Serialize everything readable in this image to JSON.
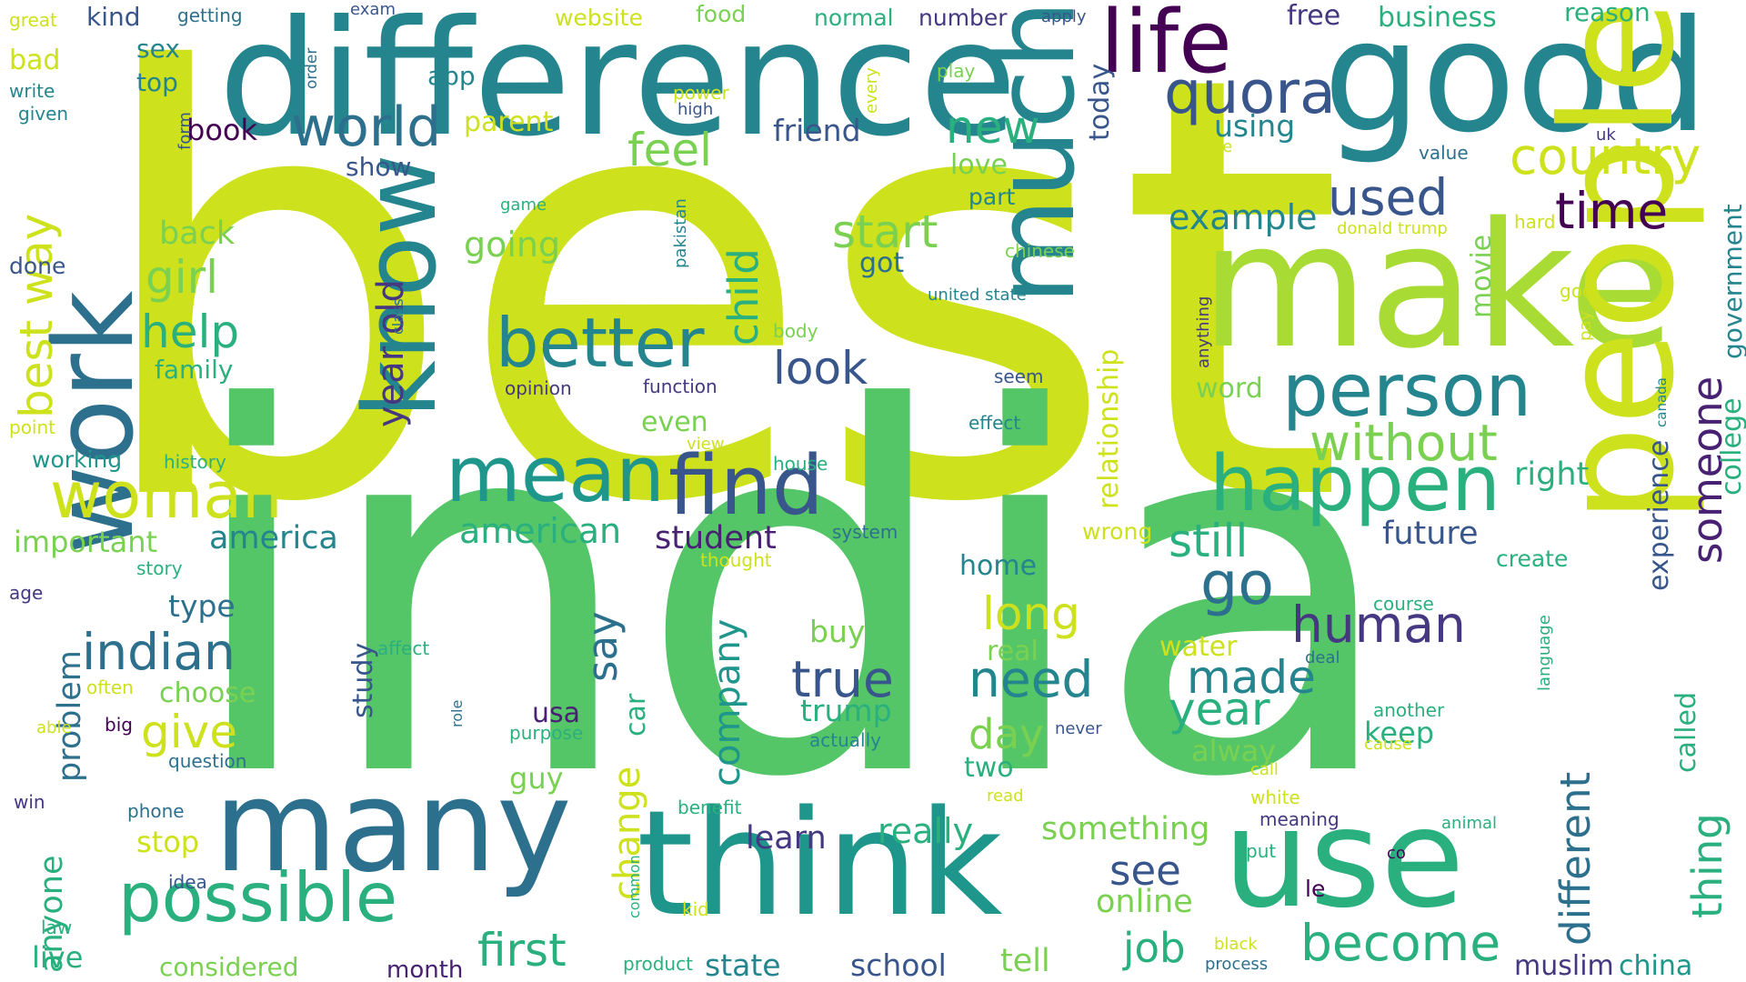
{
  "palette": {
    "lime": "#cde11d",
    "yellowgreen": "#a8db34",
    "green": "#55c667",
    "emerald": "#2ab07f",
    "teal": "#1f968b",
    "cyan": "#25858e",
    "blue": "#2d708e",
    "slate": "#39568c",
    "indigo": "#453781",
    "purple": "#482173",
    "deep": "#440154",
    "light": "#7ad151"
  },
  "words": [
    {
      "text": "best",
      "color": "lime"
    },
    {
      "text": "india",
      "color": "green"
    },
    {
      "text": "difference",
      "color": "cyan"
    },
    {
      "text": "good",
      "color": "cyan"
    },
    {
      "text": "make",
      "color": "yellowgreen"
    },
    {
      "text": "people",
      "color": "lime"
    },
    {
      "text": "think",
      "color": "teal"
    },
    {
      "text": "many",
      "color": "blue"
    },
    {
      "text": "work",
      "color": "blue"
    },
    {
      "text": "know",
      "color": "cyan"
    },
    {
      "text": "use",
      "color": "emerald"
    },
    {
      "text": "much",
      "color": "cyan"
    },
    {
      "text": "life",
      "color": "deep"
    },
    {
      "text": "find",
      "color": "slate"
    },
    {
      "text": "mean",
      "color": "teal"
    },
    {
      "text": "happen",
      "color": "emerald"
    },
    {
      "text": "person",
      "color": "cyan"
    },
    {
      "text": "possible",
      "color": "emerald"
    },
    {
      "text": "woman",
      "color": "lime"
    },
    {
      "text": "better",
      "color": "cyan"
    },
    {
      "text": "quora",
      "color": "slate"
    },
    {
      "text": "world",
      "color": "blue"
    },
    {
      "text": "country",
      "color": "lime"
    },
    {
      "text": "time",
      "color": "deep"
    },
    {
      "text": "used",
      "color": "slate"
    },
    {
      "text": "indian",
      "color": "blue"
    },
    {
      "text": "go",
      "color": "blue"
    },
    {
      "text": "without",
      "color": "light"
    },
    {
      "text": "need",
      "color": "cyan"
    },
    {
      "text": "become",
      "color": "emerald"
    },
    {
      "text": "true",
      "color": "slate"
    },
    {
      "text": "human",
      "color": "indigo"
    },
    {
      "text": "year",
      "color": "emerald"
    },
    {
      "text": "made",
      "color": "cyan"
    },
    {
      "text": "first",
      "color": "emerald"
    },
    {
      "text": "long",
      "color": "lime"
    },
    {
      "text": "give",
      "color": "lime"
    },
    {
      "text": "day",
      "color": "light"
    },
    {
      "text": "look",
      "color": "slate"
    },
    {
      "text": "feel",
      "color": "light"
    },
    {
      "text": "start",
      "color": "light"
    },
    {
      "text": "still",
      "color": "emerald"
    },
    {
      "text": "girl",
      "color": "light"
    },
    {
      "text": "help",
      "color": "emerald"
    },
    {
      "text": "new",
      "color": "emerald"
    },
    {
      "text": "someone",
      "color": "purple"
    },
    {
      "text": "different",
      "color": "blue"
    },
    {
      "text": "thing",
      "color": "emerald"
    },
    {
      "text": "best way",
      "color": "lime"
    },
    {
      "text": "year old",
      "color": "indigo"
    },
    {
      "text": "child",
      "color": "emerald"
    },
    {
      "text": "company",
      "color": "teal"
    },
    {
      "text": "change",
      "color": "lime"
    },
    {
      "text": "say",
      "color": "blue"
    },
    {
      "text": "relationship",
      "color": "lime"
    },
    {
      "text": "experience",
      "color": "slate"
    },
    {
      "text": "college",
      "color": "emerald"
    },
    {
      "text": "movie",
      "color": "light"
    },
    {
      "text": "called",
      "color": "emerald"
    },
    {
      "text": "government",
      "color": "cyan"
    },
    {
      "text": "example",
      "color": "cyan"
    },
    {
      "text": "going",
      "color": "light"
    },
    {
      "text": "back",
      "color": "light"
    },
    {
      "text": "american",
      "color": "emerald"
    },
    {
      "text": "america",
      "color": "cyan"
    },
    {
      "text": "important",
      "color": "light"
    },
    {
      "text": "student",
      "color": "purple"
    },
    {
      "text": "future",
      "color": "slate"
    },
    {
      "text": "right",
      "color": "emerald"
    },
    {
      "text": "really",
      "color": "emerald"
    },
    {
      "text": "learn",
      "color": "indigo"
    },
    {
      "text": "something",
      "color": "light"
    },
    {
      "text": "see",
      "color": "slate"
    },
    {
      "text": "job",
      "color": "emerald"
    },
    {
      "text": "online",
      "color": "light"
    },
    {
      "text": "tell",
      "color": "light"
    },
    {
      "text": "school",
      "color": "slate"
    },
    {
      "text": "state",
      "color": "cyan"
    },
    {
      "text": "muslim",
      "color": "indigo"
    },
    {
      "text": "china",
      "color": "teal"
    },
    {
      "text": "live",
      "color": "emerald"
    },
    {
      "text": "considered",
      "color": "light"
    },
    {
      "text": "month",
      "color": "purple"
    },
    {
      "text": "anyone",
      "color": "emerald"
    },
    {
      "text": "problem",
      "color": "blue"
    },
    {
      "text": "stop",
      "color": "lime"
    },
    {
      "text": "study",
      "color": "slate"
    },
    {
      "text": "type",
      "color": "blue"
    },
    {
      "text": "choose",
      "color": "light"
    },
    {
      "text": "usa",
      "color": "purple"
    },
    {
      "text": "car",
      "color": "emerald"
    },
    {
      "text": "guy",
      "color": "light"
    },
    {
      "text": "trump",
      "color": "emerald"
    },
    {
      "text": "buy",
      "color": "light"
    },
    {
      "text": "real",
      "color": "light"
    },
    {
      "text": "two",
      "color": "emerald"
    },
    {
      "text": "keep",
      "color": "emerald"
    },
    {
      "text": "alway",
      "color": "light"
    },
    {
      "text": "water",
      "color": "lime"
    },
    {
      "text": "word",
      "color": "light"
    },
    {
      "text": "got",
      "color": "blue"
    },
    {
      "text": "even",
      "color": "light"
    },
    {
      "text": "home",
      "color": "cyan"
    },
    {
      "text": "wrong",
      "color": "lime"
    },
    {
      "text": "love",
      "color": "light"
    },
    {
      "text": "part",
      "color": "cyan"
    },
    {
      "text": "friend",
      "color": "slate"
    },
    {
      "text": "today",
      "color": "slate"
    },
    {
      "text": "using",
      "color": "cyan"
    },
    {
      "text": "free",
      "color": "indigo"
    },
    {
      "text": "business",
      "color": "emerald"
    },
    {
      "text": "reason",
      "color": "emerald"
    },
    {
      "text": "parent",
      "color": "lime"
    },
    {
      "text": "book",
      "color": "deep"
    },
    {
      "text": "show",
      "color": "slate"
    },
    {
      "text": "family",
      "color": "emerald"
    },
    {
      "text": "app",
      "color": "cyan"
    },
    {
      "text": "sex",
      "color": "cyan"
    },
    {
      "text": "top",
      "color": "cyan"
    },
    {
      "text": "kind",
      "color": "slate"
    },
    {
      "text": "food",
      "color": "light"
    },
    {
      "text": "website",
      "color": "lime"
    },
    {
      "text": "normal",
      "color": "emerald"
    },
    {
      "text": "number",
      "color": "indigo"
    },
    {
      "text": "apply",
      "color": "slate"
    },
    {
      "text": "getting",
      "color": "blue"
    },
    {
      "text": "exam",
      "color": "slate"
    },
    {
      "text": "great",
      "color": "lime"
    },
    {
      "text": "bad",
      "color": "lime"
    },
    {
      "text": "write",
      "color": "cyan"
    },
    {
      "text": "given",
      "color": "cyan"
    },
    {
      "text": "form",
      "color": "slate"
    },
    {
      "text": "order",
      "color": "blue"
    },
    {
      "text": "power",
      "color": "lime"
    },
    {
      "text": "high",
      "color": "slate"
    },
    {
      "text": "every",
      "color": "lime"
    },
    {
      "text": "play",
      "color": "light"
    },
    {
      "text": "uk",
      "color": "indigo"
    },
    {
      "text": "believe",
      "color": "lime"
    },
    {
      "text": "value",
      "color": "blue"
    },
    {
      "text": "donald trump",
      "color": "lime"
    },
    {
      "text": "hard",
      "color": "lime"
    },
    {
      "text": "chinese",
      "color": "light"
    },
    {
      "text": "god",
      "color": "lime"
    },
    {
      "text": "pay",
      "color": "lime"
    },
    {
      "text": "canada",
      "color": "cyan"
    },
    {
      "text": "pakistan",
      "color": "cyan"
    },
    {
      "text": "game",
      "color": "emerald"
    },
    {
      "text": "united state",
      "color": "cyan"
    },
    {
      "text": "anything",
      "color": "indigo"
    },
    {
      "text": "class",
      "color": "blue"
    },
    {
      "text": "done",
      "color": "slate"
    },
    {
      "text": "body",
      "color": "light"
    },
    {
      "text": "seem",
      "color": "slate"
    },
    {
      "text": "opinion",
      "color": "indigo"
    },
    {
      "text": "function",
      "color": "indigo"
    },
    {
      "text": "effect",
      "color": "cyan"
    },
    {
      "text": "point",
      "color": "lime"
    },
    {
      "text": "working",
      "color": "teal"
    },
    {
      "text": "history",
      "color": "emerald"
    },
    {
      "text": "view",
      "color": "lime"
    },
    {
      "text": "house",
      "color": "emerald"
    },
    {
      "text": "safe",
      "color": "lime"
    },
    {
      "text": "system",
      "color": "blue"
    },
    {
      "text": "thought",
      "color": "lime"
    },
    {
      "text": "create",
      "color": "emerald"
    },
    {
      "text": "story",
      "color": "emerald"
    },
    {
      "text": "age",
      "color": "indigo"
    },
    {
      "text": "language",
      "color": "emerald"
    },
    {
      "text": "course",
      "color": "emerald"
    },
    {
      "text": "affect",
      "color": "emerald"
    },
    {
      "text": "often",
      "color": "lime"
    },
    {
      "text": "deal",
      "color": "blue"
    },
    {
      "text": "role",
      "color": "blue"
    },
    {
      "text": "able",
      "color": "lime"
    },
    {
      "text": "big",
      "color": "deep"
    },
    {
      "text": "another",
      "color": "emerald"
    },
    {
      "text": "purpose",
      "color": "emerald"
    },
    {
      "text": "actually",
      "color": "cyan"
    },
    {
      "text": "cause",
      "color": "lime"
    },
    {
      "text": "never",
      "color": "slate"
    },
    {
      "text": "question",
      "color": "blue"
    },
    {
      "text": "call",
      "color": "lime"
    },
    {
      "text": "win",
      "color": "indigo"
    },
    {
      "text": "phone",
      "color": "blue"
    },
    {
      "text": "benefit",
      "color": "emerald"
    },
    {
      "text": "read",
      "color": "lime"
    },
    {
      "text": "white",
      "color": "lime"
    },
    {
      "text": "meaning",
      "color": "indigo"
    },
    {
      "text": "animal",
      "color": "emerald"
    },
    {
      "text": "idea",
      "color": "slate"
    },
    {
      "text": "put",
      "color": "emerald"
    },
    {
      "text": "co",
      "color": "deep"
    },
    {
      "text": "le",
      "color": "deep"
    },
    {
      "text": "law",
      "color": "emerald"
    },
    {
      "text": "common",
      "color": "emerald"
    },
    {
      "text": "kid",
      "color": "lime"
    },
    {
      "text": "black",
      "color": "lime"
    },
    {
      "text": "process",
      "color": "blue"
    },
    {
      "text": "product",
      "color": "emerald"
    }
  ]
}
